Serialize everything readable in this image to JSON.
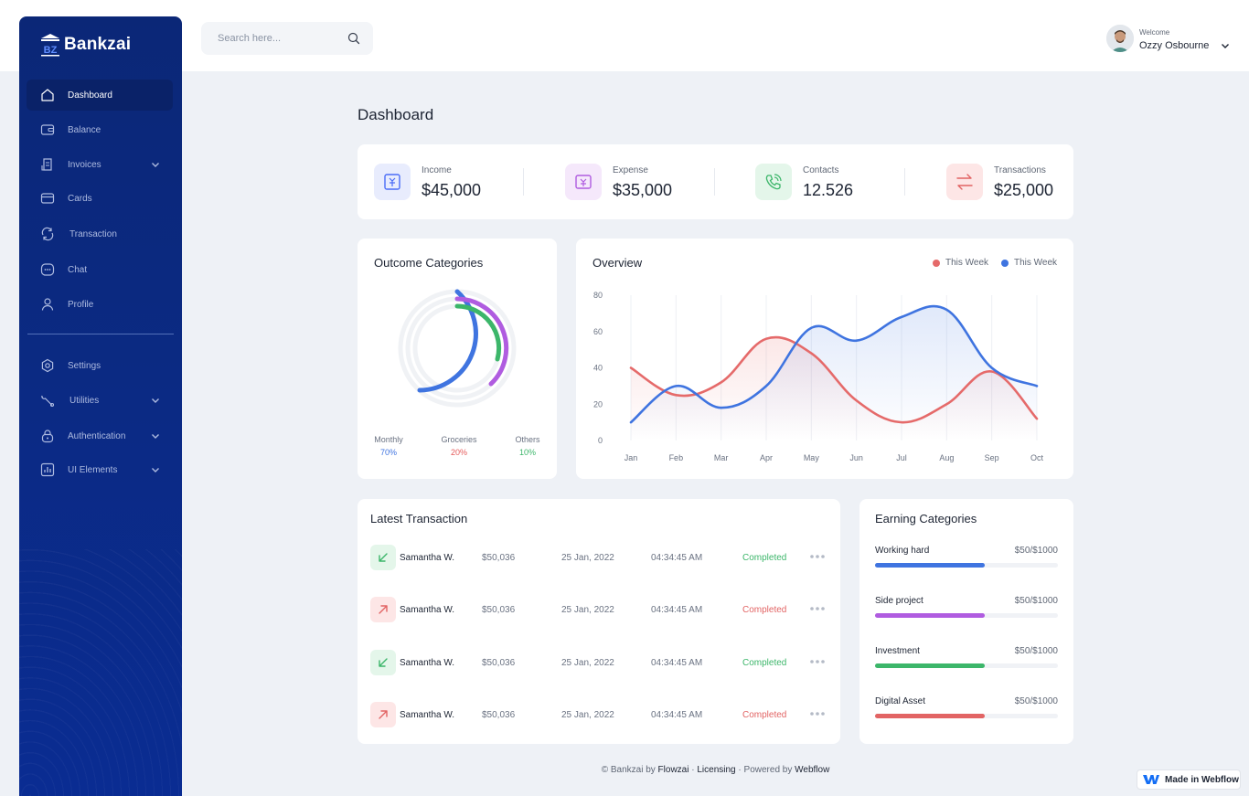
{
  "app": {
    "brand": "Bankzai",
    "brand_mark": "BZ"
  },
  "sidebar": {
    "items": [
      {
        "label": "Dashboard",
        "icon": "home-icon",
        "active": true
      },
      {
        "label": "Balance",
        "icon": "wallet-icon"
      },
      {
        "label": "Invoices",
        "icon": "invoice-icon",
        "expandable": true
      },
      {
        "label": "Cards",
        "icon": "card-icon"
      },
      {
        "label": "Transaction",
        "icon": "transaction-icon"
      },
      {
        "label": "Chat",
        "icon": "chat-icon"
      },
      {
        "label": "Profile",
        "icon": "user-icon"
      },
      {
        "label": "Settings",
        "icon": "settings-icon"
      },
      {
        "label": "Utilities",
        "icon": "tools-icon",
        "expandable": true
      },
      {
        "label": "Authentication",
        "icon": "lock-icon",
        "expandable": true
      },
      {
        "label": "UI Elements",
        "icon": "chart-icon",
        "expandable": true
      }
    ]
  },
  "header": {
    "search_placeholder": "Search here...",
    "welcome": "Welcome",
    "user_name": "Ozzy Osbourne"
  },
  "page": {
    "title": "Dashboard"
  },
  "stats": [
    {
      "label": "Income",
      "value": "$45,000",
      "icon": "income-icon",
      "color": "#4a6cf7",
      "bg": "#e8ecfd"
    },
    {
      "label": "Expense",
      "value": "$35,000",
      "icon": "expense-icon",
      "color": "#b05ce0",
      "bg": "#f5e8fb"
    },
    {
      "label": "Contacts",
      "value": "12.526",
      "icon": "phone-icon",
      "color": "#3cb66a",
      "bg": "#e4f6ea"
    },
    {
      "label": "Transactions",
      "value": "$25,000",
      "icon": "swap-icon",
      "color": "#e26464",
      "bg": "#fde6e6"
    }
  ],
  "outcome": {
    "title": "Outcome Categories",
    "legend": [
      {
        "label": "Monthly",
        "pct": "70%",
        "color": "#3f74e0"
      },
      {
        "label": "Groceries",
        "pct": "20%",
        "color": "#e55a5a"
      },
      {
        "label": "Others",
        "pct": "10%",
        "color": "#3cb66a"
      }
    ]
  },
  "overview": {
    "title": "Overview",
    "legend": [
      {
        "label": "This Week",
        "color": "#e56a6a"
      },
      {
        "label": "This Week",
        "color": "#3f74e0"
      }
    ]
  },
  "chart_data": {
    "type": "line",
    "title": "Overview",
    "x": [
      "Jan",
      "Feb",
      "Mar",
      "Apr",
      "May",
      "Jun",
      "Jul",
      "Aug",
      "Sep",
      "Oct"
    ],
    "ylim": [
      0,
      80
    ],
    "yticks": [
      0,
      20,
      40,
      60,
      80
    ],
    "grid": true,
    "legend_position": "top-right",
    "series": [
      {
        "name": "This Week",
        "color": "#e56a6a",
        "values": [
          40,
          25,
          32,
          56,
          48,
          22,
          10,
          20,
          38,
          12
        ]
      },
      {
        "name": "This Week",
        "color": "#3f74e0",
        "values": [
          10,
          30,
          18,
          30,
          62,
          55,
          68,
          72,
          40,
          30
        ]
      }
    ]
  },
  "latest": {
    "title": "Latest Transaction",
    "rows": [
      {
        "name": "Samantha W.",
        "amount": "$50,036",
        "date": "25 Jan, 2022",
        "time": "04:34:45 AM",
        "status": "Completed",
        "direction": "in"
      },
      {
        "name": "Samantha W.",
        "amount": "$50,036",
        "date": "25 Jan, 2022",
        "time": "04:34:45 AM",
        "status": "Completed",
        "direction": "out"
      },
      {
        "name": "Samantha W.",
        "amount": "$50,036",
        "date": "25 Jan, 2022",
        "time": "04:34:45 AM",
        "status": "Completed",
        "direction": "in"
      },
      {
        "name": "Samantha W.",
        "amount": "$50,036",
        "date": "25 Jan, 2022",
        "time": "04:34:45 AM",
        "status": "Completed",
        "direction": "out"
      }
    ]
  },
  "earning": {
    "title": "Earning Categories",
    "rows": [
      {
        "label": "Working hard",
        "value": "$50/$1000",
        "progress": 0.6,
        "color": "#3f74e0"
      },
      {
        "label": "Side project",
        "value": "$50/$1000",
        "progress": 0.6,
        "color": "#b05ce0"
      },
      {
        "label": "Investment",
        "value": "$50/$1000",
        "progress": 0.6,
        "color": "#3cb66a"
      },
      {
        "label": "Digital Asset",
        "value": "$50/$1000",
        "progress": 0.6,
        "color": "#e26464"
      }
    ]
  },
  "footer": {
    "copyright": "© Bankzai by",
    "author": "Flowzai",
    "sep1": "·",
    "licensing": "Licensing",
    "sep2": "·",
    "powered": "Powered by",
    "platform": "Webflow"
  },
  "badge": {
    "label": "Made in Webflow"
  }
}
